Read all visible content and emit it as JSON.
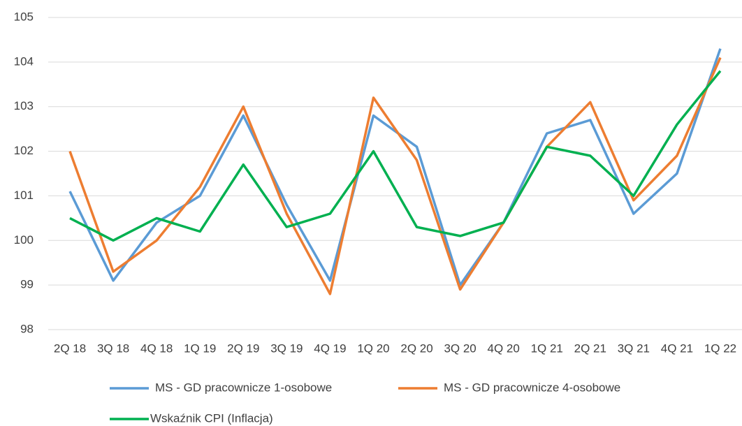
{
  "chart_data": {
    "type": "line",
    "categories": [
      "2Q 18",
      "3Q 18",
      "4Q 18",
      "1Q 19",
      "2Q 19",
      "3Q 19",
      "4Q 19",
      "1Q 20",
      "2Q 20",
      "3Q 20",
      "4Q 20",
      "1Q 21",
      "2Q 21",
      "3Q 21",
      "4Q 21",
      "1Q 22"
    ],
    "series": [
      {
        "name": "MS - GD pracownicze 1-osobowe",
        "color": "#5b9bd5",
        "values": [
          101.1,
          99.1,
          100.4,
          101.0,
          102.8,
          100.8,
          99.1,
          102.8,
          102.1,
          99.0,
          100.4,
          102.4,
          102.7,
          100.6,
          101.5,
          104.3
        ]
      },
      {
        "name": "MS - GD pracownicze 4-osobowe",
        "color": "#ed7d31",
        "values": [
          102.0,
          99.3,
          100.0,
          101.2,
          103.0,
          100.6,
          98.8,
          103.2,
          101.8,
          98.9,
          100.4,
          102.1,
          103.1,
          100.9,
          101.9,
          104.1
        ]
      },
      {
        "name": "Wskaźnik CPI (Inflacja)",
        "color": "#00b050",
        "values": [
          100.5,
          100.0,
          100.5,
          100.2,
          101.7,
          100.3,
          100.6,
          102.0,
          100.3,
          100.1,
          100.4,
          102.1,
          101.9,
          101.0,
          102.6,
          103.8
        ]
      }
    ],
    "ylim": [
      98,
      105
    ],
    "yticks": [
      98,
      99,
      100,
      101,
      102,
      103,
      104,
      105
    ],
    "grid": true
  }
}
